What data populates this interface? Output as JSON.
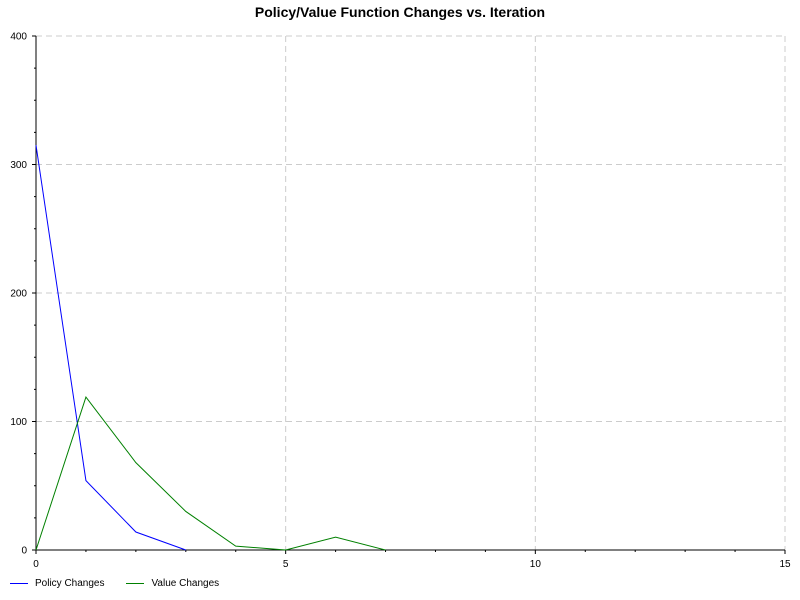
{
  "chart_data": {
    "type": "line",
    "title": "Policy/Value Function Changes vs. Iteration",
    "xlabel": "",
    "ylabel": "",
    "xlim": [
      0,
      15
    ],
    "ylim": [
      0,
      400
    ],
    "xticks": [
      0,
      5,
      10,
      15
    ],
    "yticks": [
      0,
      100,
      200,
      300,
      400
    ],
    "grid": true,
    "legend_position": "bottom-left",
    "series": [
      {
        "name": "Policy Changes",
        "color": "#0000ff",
        "x": [
          0,
          1,
          2,
          3
        ],
        "values": [
          315,
          54,
          14,
          0
        ]
      },
      {
        "name": "Value Changes",
        "color": "#008000",
        "x": [
          0,
          1,
          2,
          3,
          4,
          5,
          6,
          7
        ],
        "values": [
          0,
          119,
          68,
          30,
          3,
          0,
          10,
          0
        ]
      }
    ]
  }
}
